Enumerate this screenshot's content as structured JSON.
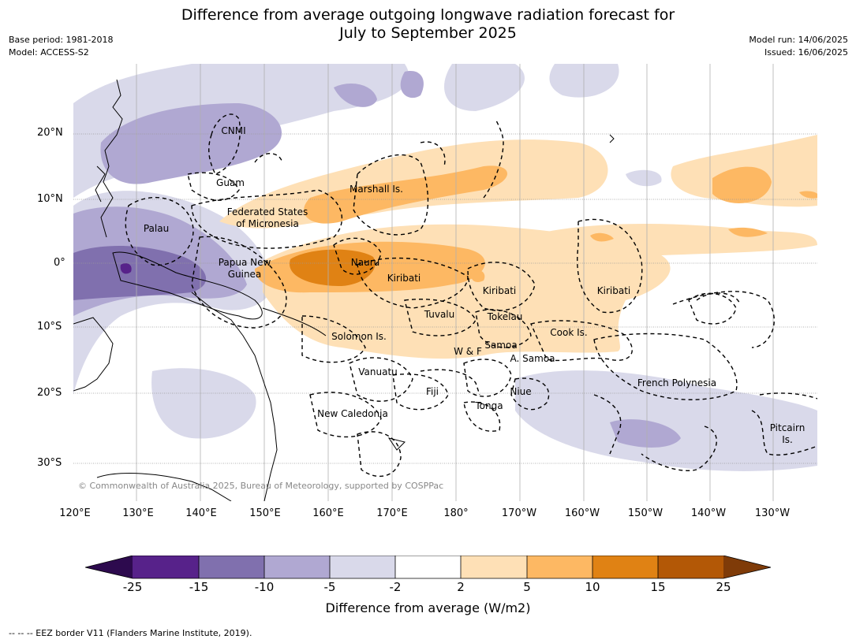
{
  "title_line1": "Difference from average outgoing longwave radiation forecast for",
  "title_line2": "July to September 2025",
  "base_period": "Base period: 1981-2018",
  "model": "Model: ACCESS-S2",
  "model_run": "Model run: 14/06/2025",
  "issued": "Issued: 16/06/2025",
  "lat_ticks": [
    "20°N",
    "10°N",
    "0°",
    "10°S",
    "20°S",
    "30°S"
  ],
  "lon_ticks": [
    "120°E",
    "130°E",
    "140°E",
    "150°E",
    "160°E",
    "170°E",
    "180°",
    "170°W",
    "160°W",
    "150°W",
    "140°W",
    "130°W"
  ],
  "copyright": "© Commonwealth of Australia 2025, Bureau of Meteorology, supported by COSPPac",
  "places": {
    "cnmi": "CNMI",
    "guam": "Guam",
    "marshall": "Marshall Is.",
    "fsm1": "Federated States",
    "fsm2": "of Micronesia",
    "palau": "Palau",
    "png1": "Papua New",
    "png2": "Guinea",
    "nauru": "Nauru",
    "kiribati_w": "Kiribati",
    "kiribati_c": "Kiribati",
    "kiribati_e": "Kiribati",
    "tuvalu": "Tuvalu",
    "tokelau": "Tokelau",
    "cook": "Cook Is.",
    "solomon": "Solomon Is.",
    "samoa": "Samoa",
    "wf": "W & F",
    "asamoa": "A. Samoa",
    "vanuatu": "Vanuatu",
    "fiji": "Fiji",
    "niue": "Niue",
    "tonga": "Tonga",
    "fp": "French Polynesia",
    "newcal": "New Caledonia",
    "pitcairn1": "Pitcairn",
    "pitcairn2": "Is."
  },
  "legend": {
    "title": "Difference from average (W/m2)",
    "ticks": [
      "-25",
      "-15",
      "-10",
      "-5",
      "-2",
      "2",
      "5",
      "10",
      "15",
      "25"
    ],
    "colors": {
      "lt_-25": "#2d0a4e",
      "-25_-15": "#57228a",
      "-15_-10": "#8070ae",
      "-10_-5": "#b0a8d2",
      "-5_-2": "#d9d9ea",
      "-2_2": "#ffffff",
      "2_5": "#fee0b6",
      "5_10": "#fdb863",
      "10_15": "#e08214",
      "15_25": "#b35806",
      "gt_25": "#7f3b08"
    }
  },
  "footnote": "--  --  -- EEZ border V11 (Flanders Marine Institute, 2019)."
}
